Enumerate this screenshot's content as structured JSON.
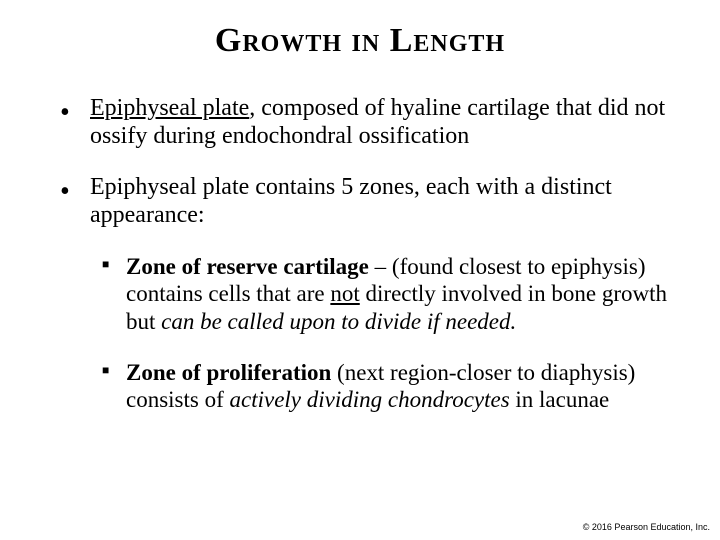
{
  "colors": {
    "background": "#ffffff",
    "text": "#000000",
    "bullet": "#000000"
  },
  "typography": {
    "title_family": "Times New Roman",
    "title_fontsize_pt": 26,
    "body_family": "Times New Roman",
    "body_fontsize_pt": 18,
    "sub_fontsize_pt": 17,
    "copyright_family": "Arial",
    "copyright_fontsize_pt": 7
  },
  "title": {
    "word1": "Growth",
    "word2": " in ",
    "word3": "Length"
  },
  "b1": {
    "lead": "Epiphyseal plate",
    "rest": ", composed of hyaline cartilage that did not ossify during endochondral ossification"
  },
  "b2": {
    "text": "Epiphyseal plate contains 5 zones, each with a distinct appearance:"
  },
  "s1": {
    "bold": "Zone of reserve cartilage",
    "t1": " – (found closest to epiphysis) contains cells that are ",
    "u1": "not",
    "t2": " directly involved in bone growth but ",
    "i1": "can be called upon to divide if needed.",
    "t3": ""
  },
  "s2": {
    "bold": "Zone of proliferation",
    "t1": " (next region-closer to diaphysis) consists of ",
    "i1": "actively dividing chondrocytes",
    "t2": " in lacunae"
  },
  "copyright": "© 2016 Pearson Education, Inc."
}
